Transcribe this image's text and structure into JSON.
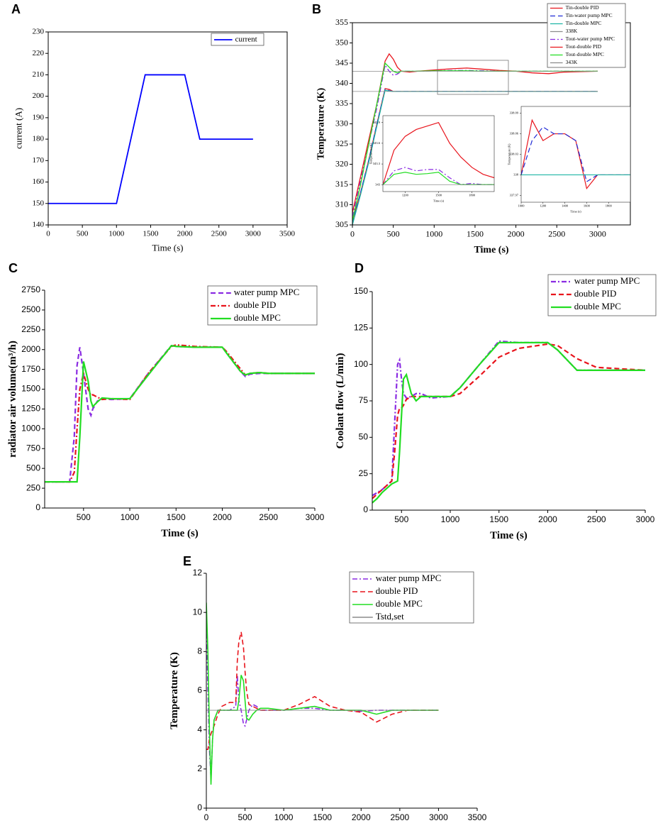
{
  "chart_data": [
    {
      "type": "line",
      "panel": "A",
      "xlabel": "Time (s)",
      "ylabel": "current (A)",
      "legend": "upper right",
      "x": [
        0,
        1000,
        1420,
        2000,
        2220,
        3000
      ],
      "xlim": [
        0,
        3500
      ],
      "xticks": [
        0,
        500,
        1000,
        1500,
        2000,
        2500,
        3000,
        3500
      ],
      "ylim": [
        140,
        230
      ],
      "yticks": [
        140,
        150,
        160,
        170,
        180,
        190,
        200,
        210,
        220,
        230
      ],
      "series": [
        {
          "name": "current",
          "color": "#0000ff",
          "style": "solid",
          "values": [
            150,
            150,
            210,
            210,
            180,
            180
          ]
        }
      ]
    },
    {
      "type": "line",
      "panel": "B",
      "xlabel": "Time (s)",
      "ylabel": "Temperature (K)",
      "legend": "upper right",
      "x": [
        0,
        100,
        200,
        300,
        400,
        450,
        500,
        550,
        600,
        700,
        800,
        1000,
        1200,
        1400,
        1600,
        1800,
        2000,
        2200,
        2400,
        2600,
        3000
      ],
      "xlim": [
        0,
        3400
      ],
      "xticks": [
        0,
        500,
        1000,
        1500,
        2000,
        2500,
        3000
      ],
      "ylim": [
        305,
        355
      ],
      "yticks": [
        305,
        310,
        315,
        320,
        325,
        330,
        335,
        340,
        345,
        350,
        355
      ],
      "series": [
        {
          "name": "Tin-double PID",
          "color": "#e8141c",
          "style": "solid",
          "values": [
            306,
            313,
            321,
            330,
            338.7,
            338.5,
            338,
            338,
            338,
            338,
            338,
            338,
            338,
            338,
            338,
            338,
            338,
            338,
            338,
            338,
            338
          ]
        },
        {
          "name": "Tin-water pump MPC",
          "color": "#1f2bd6",
          "style": "dashed",
          "values": [
            305.5,
            313,
            321,
            330,
            338.5,
            338.2,
            338,
            338,
            338,
            338,
            338,
            338,
            338,
            338,
            338,
            338,
            338,
            338,
            338,
            338,
            338
          ]
        },
        {
          "name": "Tin-double MPC",
          "color": "#1fb5a5",
          "style": "solid",
          "values": [
            305,
            312.5,
            320.5,
            329.5,
            338.3,
            338.1,
            338,
            338,
            338,
            338,
            338,
            338,
            338,
            338,
            338,
            338,
            338,
            338,
            338,
            338,
            338
          ]
        },
        {
          "name": "338K",
          "color": "#8c8c8c",
          "style": "solid",
          "values": [
            338,
            338,
            338,
            338,
            338,
            338,
            338,
            338,
            338,
            338,
            338,
            338,
            338,
            338,
            338,
            338,
            338,
            338,
            338,
            338,
            338
          ]
        },
        {
          "name": "Tout-water pump MPC",
          "color": "#8a2be2",
          "style": "dashdot",
          "values": [
            307,
            316,
            325,
            334,
            344.5,
            343,
            342,
            342.3,
            343,
            343,
            343,
            343.1,
            343.2,
            343.2,
            343.1,
            343,
            343,
            343,
            343,
            343,
            343
          ]
        },
        {
          "name": "Tout-double PID",
          "color": "#e8141c",
          "style": "solid",
          "values": [
            308,
            317,
            326,
            335,
            345.5,
            347.3,
            346,
            344,
            343,
            342.8,
            343,
            343.3,
            343.6,
            343.8,
            343.5,
            343.2,
            343,
            342.6,
            342.4,
            342.8,
            343
          ]
        },
        {
          "name": "Tout-double MPC",
          "color": "#22dd22",
          "style": "solid",
          "values": [
            306,
            315,
            325,
            335,
            345,
            344,
            343,
            342.6,
            343,
            343,
            343,
            343.1,
            343.1,
            343.1,
            343,
            343,
            343,
            343,
            343,
            343,
            343
          ]
        },
        {
          "name": "343K",
          "color": "#8c8c8c",
          "style": "solid",
          "values": [
            343,
            343,
            343,
            343,
            343,
            343,
            343,
            343,
            343,
            343,
            343,
            343,
            343,
            343,
            343,
            343,
            343,
            343,
            343,
            343,
            343
          ]
        }
      ]
    },
    {
      "type": "line",
      "xlabel": "Time (s)",
      "ylabel": "Temperature (K)",
      "x": [
        1000,
        1100,
        1200,
        1300,
        1400,
        1500,
        1600,
        1700,
        1800,
        1900,
        2000
      ],
      "xlim": [
        1000,
        2000
      ],
      "xticks": [
        1200,
        1500,
        1800
      ],
      "ylim": [
        342.9,
        344.0
      ],
      "yticks": [
        343.0,
        343.3,
        343.6,
        343.9
      ],
      "series": [
        {
          "color": "#e8141c",
          "style": "solid",
          "values": [
            343.0,
            343.5,
            343.7,
            343.8,
            343.85,
            343.9,
            343.6,
            343.4,
            343.25,
            343.15,
            343.1
          ]
        },
        {
          "color": "#8a2be2",
          "style": "dashdot",
          "values": [
            343.0,
            343.2,
            343.25,
            343.2,
            343.22,
            343.22,
            343.1,
            343.0,
            343.02,
            343.0,
            343.0
          ]
        },
        {
          "color": "#22dd22",
          "style": "solid",
          "values": [
            343.0,
            343.15,
            343.18,
            343.15,
            343.16,
            343.18,
            343.05,
            343.0,
            343.0,
            343.0,
            343.0
          ]
        },
        {
          "color": "#8c8c8c",
          "style": "solid",
          "values": [
            343.0,
            343.0,
            343.0,
            343.0,
            343.0,
            343.0,
            343.0,
            343.0,
            343.0,
            343.0,
            343.0
          ]
        }
      ]
    },
    {
      "type": "line",
      "xlabel": "Time (s)",
      "ylabel": "Temperature (K)",
      "x": [
        1000,
        1100,
        1200,
        1300,
        1400,
        1500,
        1600,
        1700,
        1800,
        1900,
        2000
      ],
      "xlim": [
        1000,
        2000
      ],
      "xticks": [
        1000,
        1200,
        1400,
        1600,
        1800
      ],
      "ylim": [
        337.96,
        338.1
      ],
      "yticks": [
        337.97,
        338.0,
        338.03,
        338.06,
        338.09
      ],
      "series": [
        {
          "color": "#e8141c",
          "style": "solid",
          "values": [
            338.0,
            338.08,
            338.05,
            338.06,
            338.06,
            338.05,
            337.98,
            338.0,
            338.0,
            338.0,
            338.0
          ]
        },
        {
          "color": "#1f2bd6",
          "style": "dashed",
          "values": [
            338.0,
            338.05,
            338.07,
            338.06,
            338.06,
            338.05,
            337.99,
            338.0,
            338.0,
            338.0,
            338.0
          ]
        },
        {
          "color": "#1fb5a5",
          "style": "solid",
          "values": [
            338.0,
            338.0,
            338.0,
            338.0,
            338.0,
            338.0,
            338.0,
            338.0,
            338.0,
            338.0,
            338.0
          ]
        }
      ]
    },
    {
      "type": "line",
      "panel": "C",
      "xlabel": "Time (s)",
      "ylabel": "radiator air volume(m³/h)",
      "legend": "upper right",
      "x": [
        80,
        350,
        400,
        430,
        460,
        500,
        550,
        580,
        600,
        650,
        700,
        800,
        1000,
        1200,
        1450,
        1500,
        1700,
        2000,
        2050,
        2200,
        2250,
        2300,
        2400,
        2500,
        3000
      ],
      "xlim": [
        80,
        3000
      ],
      "xticks": [
        500,
        1000,
        1500,
        2000,
        2500,
        3000
      ],
      "ylim": [
        0,
        2750
      ],
      "yticks": [
        0,
        250,
        500,
        750,
        1000,
        1250,
        1500,
        1750,
        2000,
        2250,
        2500,
        2750
      ],
      "series": [
        {
          "name": "water pump MPC",
          "color": "#8a2be2",
          "style": "dashed",
          "values": [
            330,
            330,
            900,
            1800,
            2030,
            1700,
            1250,
            1170,
            1250,
            1350,
            1380,
            1370,
            1380,
            1700,
            2050,
            2040,
            2030,
            2030,
            1950,
            1720,
            1660,
            1690,
            1700,
            1700,
            1700
          ]
        },
        {
          "name": "double PID",
          "color": "#e8141c",
          "style": "dashdot",
          "values": [
            330,
            330,
            450,
            1000,
            1500,
            1700,
            1500,
            1420,
            1430,
            1400,
            1370,
            1380,
            1370,
            1700,
            2040,
            2060,
            2040,
            2030,
            1970,
            1750,
            1680,
            1700,
            1710,
            1700,
            1700
          ]
        },
        {
          "name": "double MPC",
          "color": "#22dd22",
          "style": "solid",
          "values": [
            330,
            330,
            330,
            330,
            900,
            1850,
            1600,
            1350,
            1280,
            1340,
            1390,
            1380,
            1380,
            1680,
            2050,
            2040,
            2030,
            2030,
            1950,
            1720,
            1680,
            1700,
            1710,
            1700,
            1700
          ]
        }
      ]
    },
    {
      "type": "line",
      "panel": "D",
      "xlabel": "Time (s)",
      "ylabel": "Coolant flow (L/min)",
      "legend": "upper right",
      "x": [
        200,
        250,
        300,
        350,
        400,
        430,
        460,
        480,
        500,
        520,
        550,
        600,
        650,
        700,
        800,
        1000,
        1100,
        1300,
        1500,
        1700,
        2000,
        2100,
        2300,
        2500,
        3000
      ],
      "xlim": [
        200,
        3000
      ],
      "xticks": [
        500,
        1000,
        1500,
        2000,
        2500,
        3000
      ],
      "ylim": [
        0,
        150
      ],
      "yticks": [
        0,
        25,
        50,
        75,
        100,
        125,
        150
      ],
      "series": [
        {
          "name": "water pump MPC",
          "color": "#8a2be2",
          "style": "dashdot",
          "values": [
            10,
            12,
            14,
            17,
            20,
            60,
            100,
            103,
            90,
            80,
            77,
            78,
            80,
            80,
            77,
            78,
            84,
            100,
            116,
            115,
            115,
            110,
            96,
            96,
            96
          ]
        },
        {
          "name": "double PID",
          "color": "#e8141c",
          "style": "dashed",
          "values": [
            8,
            11,
            14,
            17,
            20,
            40,
            65,
            70,
            70,
            72,
            76,
            78,
            78,
            78,
            78,
            78,
            80,
            92,
            105,
            111,
            114,
            113,
            104,
            98,
            96
          ]
        },
        {
          "name": "double MPC",
          "color": "#22dd22",
          "style": "solid",
          "values": [
            5,
            8,
            12,
            15,
            18,
            19,
            20,
            40,
            65,
            90,
            93,
            80,
            75,
            78,
            78,
            78,
            84,
            100,
            115,
            115,
            115,
            110,
            96,
            96,
            96
          ]
        }
      ]
    },
    {
      "type": "line",
      "panel": "E",
      "xlabel": "Time (s)",
      "ylabel": "Temperature (K)",
      "legend": "upper right",
      "x": [
        0,
        20,
        40,
        60,
        80,
        100,
        150,
        200,
        300,
        380,
        400,
        420,
        450,
        480,
        500,
        520,
        550,
        600,
        650,
        700,
        800,
        1000,
        1200,
        1400,
        1600,
        1800,
        2000,
        2200,
        2400,
        2600,
        3000
      ],
      "xlim": [
        0,
        3500
      ],
      "xticks": [
        0,
        500,
        1000,
        1500,
        2000,
        2500,
        3000,
        3500
      ],
      "ylim": [
        0,
        12
      ],
      "yticks": [
        0,
        2,
        4,
        6,
        8,
        10,
        12
      ],
      "series": [
        {
          "name": "water pump MPC",
          "color": "#8a2be2",
          "style": "dashdot",
          "values": [
            10,
            6,
            3,
            1.5,
            3.5,
            4.5,
            5,
            5,
            5,
            5.2,
            6.8,
            5.5,
            5,
            4.3,
            4.2,
            4.5,
            5,
            5.3,
            5.2,
            5,
            5,
            5,
            5.1,
            5.1,
            5,
            5,
            4.95,
            5,
            5,
            5,
            5
          ]
        },
        {
          "name": "double PID",
          "color": "#e8141c",
          "style": "dashed",
          "values": [
            3,
            3,
            3.5,
            3.8,
            4,
            4.2,
            4.8,
            5.2,
            5.4,
            5.4,
            7.5,
            8.5,
            9,
            8.2,
            7,
            6,
            5.3,
            5.2,
            5.1,
            5,
            5,
            5,
            5.3,
            5.7,
            5.2,
            5,
            4.9,
            4.4,
            4.8,
            5,
            5
          ]
        },
        {
          "name": "double MPC",
          "color": "#22dd22",
          "style": "solid",
          "values": [
            10.5,
            8,
            4,
            1.2,
            3.5,
            4.5,
            5,
            5,
            5,
            5,
            5,
            5.5,
            6.8,
            6.5,
            5.5,
            4.6,
            4.5,
            4.8,
            5,
            5.1,
            5.1,
            5,
            5.1,
            5.2,
            5,
            5,
            5,
            4.8,
            5,
            5,
            5
          ]
        },
        {
          "name": "Tstd,set",
          "color": "#8c8c8c",
          "style": "solid",
          "values": [
            5,
            5,
            5,
            5,
            5,
            5,
            5,
            5,
            5,
            5,
            5,
            5,
            5,
            5,
            5,
            5,
            5,
            5,
            5,
            5,
            5,
            5,
            5,
            5,
            5,
            5,
            5,
            5,
            5,
            5,
            5
          ]
        }
      ]
    }
  ]
}
